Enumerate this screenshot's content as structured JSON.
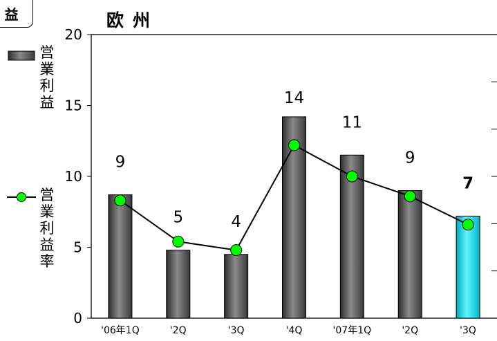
{
  "header": {
    "tab_label": "益",
    "title": "欧州"
  },
  "chart_data": {
    "type": "bar",
    "categories": [
      "'06年1Q",
      "'2Q",
      "'3Q",
      "'4Q",
      "'07年1Q",
      "'2Q",
      "'3Q"
    ],
    "series": [
      {
        "name": "営業利益",
        "type": "bar",
        "values": [
          8.7,
          4.8,
          4.5,
          14.2,
          11.5,
          9.0,
          7.2
        ],
        "labels": [
          "9",
          "5",
          "4",
          "14",
          "11",
          "9",
          "7"
        ],
        "colors": [
          "#595959",
          "#595959",
          "#595959",
          "#595959",
          "#595959",
          "#595959",
          "#00d4e4"
        ]
      },
      {
        "name": "営業利益率",
        "type": "line",
        "values": [
          8.3,
          5.4,
          4.8,
          12.2,
          10.0,
          8.6,
          6.6
        ],
        "color": "#00ff00"
      }
    ],
    "y_ticks": [
      "0",
      "5",
      "10",
      "15",
      "20"
    ],
    "ylim": [
      0,
      20
    ],
    "grid": false,
    "legend": "left"
  }
}
